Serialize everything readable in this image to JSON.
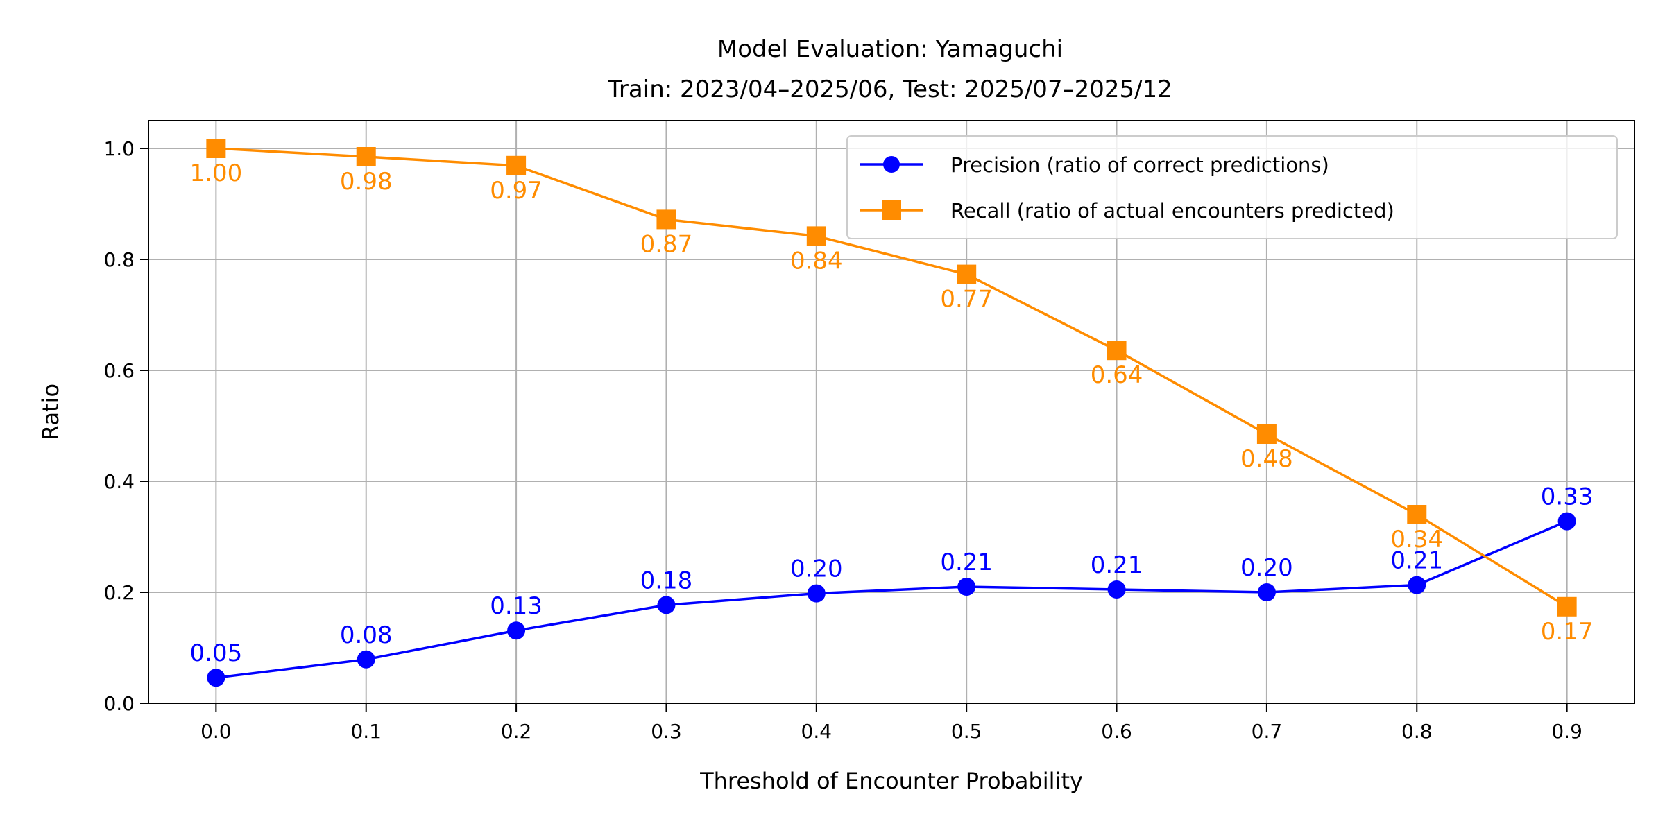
{
  "chart_data": {
    "type": "line",
    "title": "Model Evaluation: Yamaguchi",
    "subtitle": "Train: 2023/04–2025/06, Test: 2025/07–2025/12",
    "xlabel": "Threshold of Encounter Probability",
    "ylabel": "Ratio",
    "x": [
      0.0,
      0.1,
      0.2,
      0.3,
      0.4,
      0.5,
      0.6,
      0.7,
      0.8,
      0.9
    ],
    "xticks": [
      "0.0",
      "0.1",
      "0.2",
      "0.3",
      "0.4",
      "0.5",
      "0.6",
      "0.7",
      "0.8",
      "0.9"
    ],
    "yticks": [
      "0.0",
      "0.2",
      "0.4",
      "0.6",
      "0.8",
      "1.0"
    ],
    "xlim": [
      -0.045,
      0.945
    ],
    "ylim": [
      0,
      1.05
    ],
    "grid": true,
    "legend_position": "top-right",
    "series": [
      {
        "name": "Precision (ratio of correct predictions)",
        "color": "#0000ff",
        "marker": "circle",
        "values": [
          0.046,
          0.079,
          0.131,
          0.177,
          0.198,
          0.21,
          0.205,
          0.2,
          0.213,
          0.328
        ],
        "labels": [
          "0.05",
          "0.08",
          "0.13",
          "0.18",
          "0.20",
          "0.21",
          "0.21",
          "0.20",
          "0.21",
          "0.33"
        ]
      },
      {
        "name": "Recall (ratio of actual encounters predicted)",
        "color": "#ff8c00",
        "marker": "square",
        "values": [
          1.0,
          0.985,
          0.969,
          0.872,
          0.842,
          0.773,
          0.636,
          0.485,
          0.34,
          0.174
        ],
        "labels": [
          "1.00",
          "0.98",
          "0.97",
          "0.87",
          "0.84",
          "0.77",
          "0.64",
          "0.48",
          "0.34",
          "0.17"
        ]
      }
    ]
  }
}
